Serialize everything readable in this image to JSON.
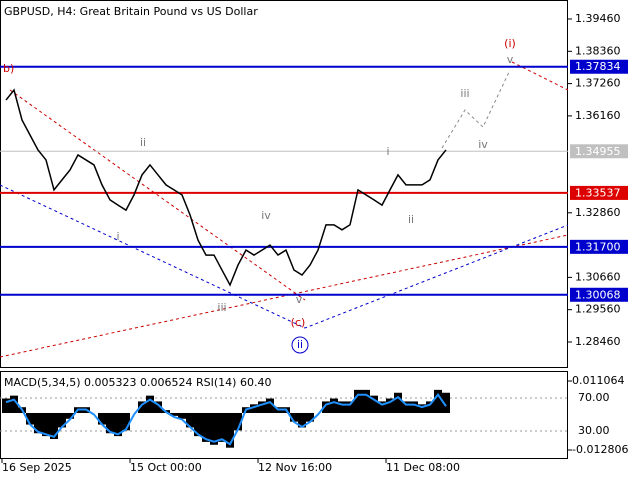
{
  "chart_data": [
    {
      "type": "line",
      "title": "GBPUSD, H4:  Great Britain Pound vs US Dollar",
      "color": "#000000",
      "categories": [
        "16 Sep 2025",
        null,
        null,
        null,
        null,
        null,
        null,
        null,
        null,
        null,
        null,
        null,
        null,
        null,
        null,
        null,
        "15 Oct 00:00",
        null,
        null,
        null,
        null,
        null,
        null,
        null,
        null,
        null,
        null,
        null,
        null,
        null,
        null,
        null,
        "12 Nov 16:00",
        null,
        null,
        null,
        null,
        null,
        null,
        null,
        null,
        null,
        null,
        null,
        null,
        null,
        null,
        null,
        "11 Dec 08:00",
        null,
        null,
        null,
        null,
        null,
        null,
        null
      ],
      "values": [
        1.367,
        1.3704,
        1.3602,
        1.3551,
        1.35,
        1.3466,
        1.3364,
        1.3398,
        1.3432,
        1.3483,
        1.3466,
        1.3449,
        1.3381,
        1.333,
        1.3312,
        1.3295,
        1.3347,
        1.3415,
        1.3449,
        1.3415,
        1.3381,
        1.3364,
        1.3347,
        1.3279,
        1.3193,
        1.3142,
        1.3142,
        1.3091,
        1.304,
        1.3108,
        1.3159,
        1.3142,
        1.3159,
        1.3176,
        1.3142,
        1.3159,
        1.3091,
        1.3074,
        1.3108,
        1.3159,
        1.3245,
        1.3245,
        1.3228,
        1.3245,
        1.3364,
        1.3347,
        1.333,
        1.3312,
        1.3364,
        1.3415,
        1.3381,
        1.3381,
        1.3381,
        1.3398,
        1.3466,
        1.35
      ],
      "ylim": [
        1.27574,
        1.40107
      ],
      "yticks": [
        {
          "value": 1.3946,
          "label": "1.39460"
        },
        {
          "value": 1.3836,
          "label": "1.38360"
        },
        {
          "value": 1.3726,
          "label": "1.37260"
        },
        {
          "value": 1.3616,
          "label": "1.36160"
        },
        {
          "value": 1.3286,
          "label": "1.32860"
        },
        {
          "value": 1.3066,
          "label": "1.30660"
        },
        {
          "value": 1.2956,
          "label": "1.29560"
        },
        {
          "value": 1.2846,
          "label": "1.28460"
        }
      ],
      "levels": [
        {
          "value": 1.37834,
          "label": "1.37834",
          "color": "#0000cc"
        },
        {
          "value": 1.34955,
          "label": "1.34955",
          "color": "#c0c0c0"
        },
        {
          "value": 1.33537,
          "label": "1.33537",
          "color": "#dd0000"
        },
        {
          "value": 1.317,
          "label": "1.31700",
          "color": "#0000cc"
        },
        {
          "value": 1.30068,
          "label": "1.30068",
          "color": "#0000cc"
        }
      ],
      "annotations": [
        {
          "text": "b)",
          "color": "#cc0000"
        },
        {
          "text": "(i)",
          "color": "#cc0000"
        },
        {
          "text": "ii",
          "color": "#777777"
        },
        {
          "text": "i",
          "color": "#777777"
        },
        {
          "text": "iii",
          "color": "#777777"
        },
        {
          "text": "iv",
          "color": "#777777"
        },
        {
          "text": "v",
          "color": "#777777"
        },
        {
          "text": "(c)",
          "color": "#cc0000"
        },
        {
          "text": "ii",
          "color": "#0000cc"
        },
        {
          "text": "i",
          "color": "#777777"
        },
        {
          "text": "ii",
          "color": "#777777"
        },
        {
          "text": "iii",
          "color": "#777777"
        },
        {
          "text": "iv",
          "color": "#777777"
        },
        {
          "text": "v",
          "color": "#777777"
        }
      ]
    },
    {
      "type": "bar",
      "title": "MACD(5,34,5) 0.005323 0.006524 RSI(14) 60.40",
      "series": [
        {
          "color": "#000000",
          "values": [
            0.005,
            0.006,
            0.002,
            -0.004,
            -0.007,
            -0.008,
            -0.009,
            -0.005,
            -0.002,
            0.002,
            0.002,
            0.0,
            -0.004,
            -0.007,
            -0.008,
            -0.006,
            0.0,
            0.004,
            0.006,
            0.004,
            0.001,
            -0.001,
            -0.002,
            -0.005,
            -0.008,
            -0.01,
            -0.011,
            -0.01,
            -0.012,
            -0.006,
            0.002,
            0.003,
            0.004,
            0.005,
            0.002,
            0.002,
            -0.003,
            -0.005,
            -0.003,
            0.0,
            0.004,
            0.005,
            0.004,
            0.004,
            0.008,
            0.008,
            0.006,
            0.004,
            0.005,
            0.007,
            0.004,
            0.004,
            0.003,
            0.004,
            0.008,
            0.007
          ]
        },
        {
          "color": "#1e90ff",
          "axis": "y2",
          "values": [
            65,
            68,
            56,
            38,
            29,
            26,
            23,
            35,
            44,
            56,
            56,
            50,
            38,
            29,
            26,
            32,
            50,
            62,
            68,
            62,
            53,
            47,
            44,
            35,
            26,
            20,
            17,
            20,
            14,
            32,
            56,
            59,
            62,
            65,
            56,
            56,
            41,
            35,
            41,
            50,
            62,
            65,
            62,
            62,
            74,
            74,
            68,
            62,
            65,
            71,
            62,
            62,
            59,
            62,
            74,
            60
          ]
        }
      ],
      "ylim": [
        -0.01557,
        0.01418
      ],
      "yticks": [
        0.011064,
        -0.012806
      ],
      "y2lim": [
        -2.7,
        101.5
      ],
      "y2ticks": [
        {
          "value": 70,
          "label": "70.00"
        },
        {
          "value": 30,
          "label": "30.00"
        }
      ]
    }
  ]
}
